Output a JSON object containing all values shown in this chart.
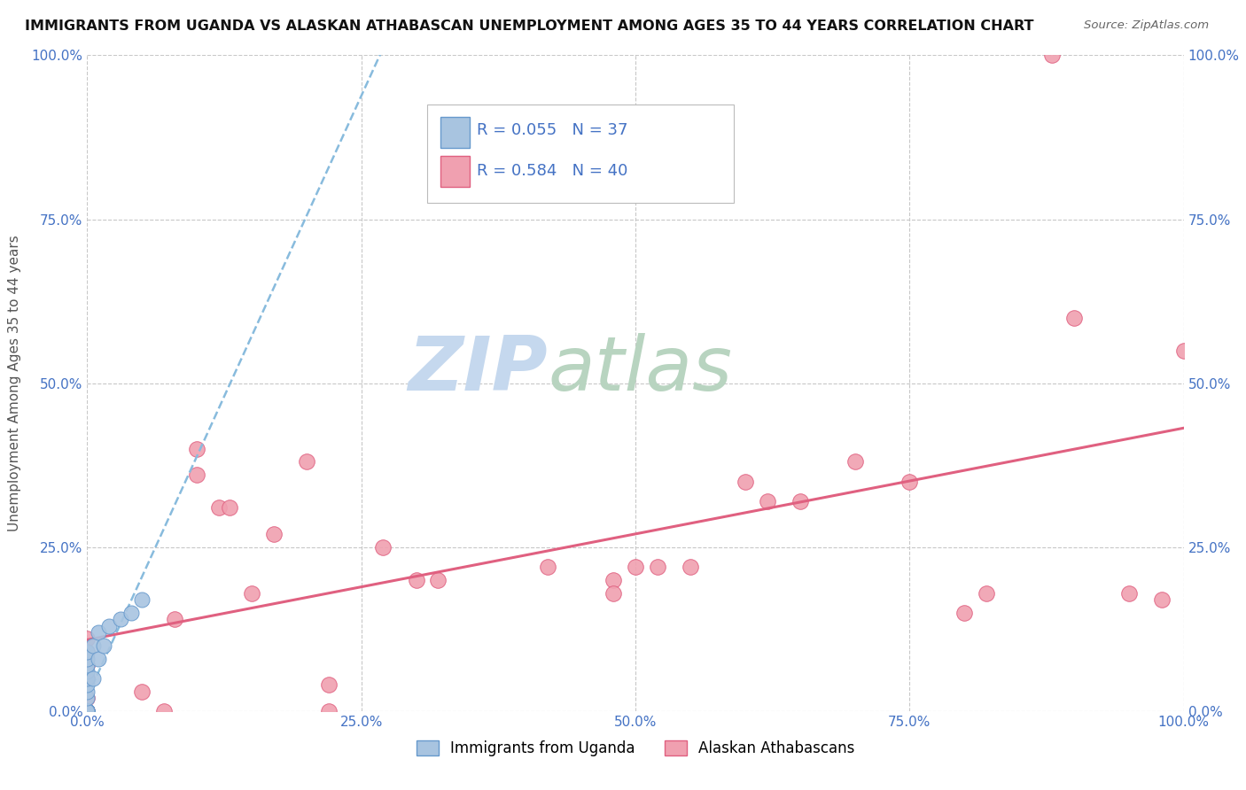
{
  "title": "IMMIGRANTS FROM UGANDA VS ALASKAN ATHABASCAN UNEMPLOYMENT AMONG AGES 35 TO 44 YEARS CORRELATION CHART",
  "source": "Source: ZipAtlas.com",
  "ylabel": "Unemployment Among Ages 35 to 44 years",
  "xlabel": "",
  "xlim": [
    0.0,
    1.0
  ],
  "ylim": [
    0.0,
    1.0
  ],
  "xtick_labels": [
    "0.0%",
    "25.0%",
    "50.0%",
    "75.0%",
    "100.0%"
  ],
  "xtick_vals": [
    0.0,
    0.25,
    0.5,
    0.75,
    1.0
  ],
  "ytick_labels": [
    "0.0%",
    "25.0%",
    "50.0%",
    "75.0%",
    "100.0%"
  ],
  "ytick_vals": [
    0.0,
    0.25,
    0.5,
    0.75,
    1.0
  ],
  "uganda_color": "#a8c4e0",
  "uganda_edge": "#6699cc",
  "athabascan_color": "#f0a0b0",
  "athabascan_edge": "#e06080",
  "uganda_R": 0.055,
  "uganda_N": 37,
  "athabascan_R": 0.584,
  "athabascan_N": 40,
  "background_color": "#ffffff",
  "grid_color": "#c8c8c8",
  "watermark_zip_color": "#c8d8ee",
  "watermark_atlas_color": "#c8d8d0",
  "trendline_uganda_color": "#88bbdd",
  "trendline_athabascan_color": "#e06080",
  "uganda_points": [
    [
      0.0,
      0.0
    ],
    [
      0.0,
      0.0
    ],
    [
      0.0,
      0.0
    ],
    [
      0.0,
      0.0
    ],
    [
      0.0,
      0.0
    ],
    [
      0.0,
      0.0
    ],
    [
      0.0,
      0.0
    ],
    [
      0.0,
      0.0
    ],
    [
      0.0,
      0.0
    ],
    [
      0.0,
      0.0
    ],
    [
      0.0,
      0.0
    ],
    [
      0.0,
      0.0
    ],
    [
      0.0,
      0.0
    ],
    [
      0.0,
      0.0
    ],
    [
      0.0,
      0.0
    ],
    [
      0.0,
      0.0
    ],
    [
      0.0,
      0.0
    ],
    [
      0.0,
      0.0
    ],
    [
      0.0,
      0.0
    ],
    [
      0.0,
      0.0
    ],
    [
      0.0,
      0.02
    ],
    [
      0.0,
      0.03
    ],
    [
      0.0,
      0.04
    ],
    [
      0.0,
      0.05
    ],
    [
      0.0,
      0.06
    ],
    [
      0.0,
      0.07
    ],
    [
      0.0,
      0.08
    ],
    [
      0.0,
      0.09
    ],
    [
      0.005,
      0.05
    ],
    [
      0.005,
      0.1
    ],
    [
      0.01,
      0.08
    ],
    [
      0.01,
      0.12
    ],
    [
      0.015,
      0.1
    ],
    [
      0.02,
      0.13
    ],
    [
      0.03,
      0.14
    ],
    [
      0.04,
      0.15
    ],
    [
      0.05,
      0.17
    ]
  ],
  "athabascan_points": [
    [
      0.0,
      0.0
    ],
    [
      0.0,
      0.02
    ],
    [
      0.0,
      0.05
    ],
    [
      0.0,
      0.07
    ],
    [
      0.0,
      0.09
    ],
    [
      0.0,
      0.11
    ],
    [
      0.0,
      0.0
    ],
    [
      0.05,
      0.03
    ],
    [
      0.07,
      0.0
    ],
    [
      0.08,
      0.14
    ],
    [
      0.1,
      0.4
    ],
    [
      0.1,
      0.36
    ],
    [
      0.12,
      0.31
    ],
    [
      0.13,
      0.31
    ],
    [
      0.15,
      0.18
    ],
    [
      0.17,
      0.27
    ],
    [
      0.2,
      0.38
    ],
    [
      0.22,
      0.0
    ],
    [
      0.22,
      0.04
    ],
    [
      0.27,
      0.25
    ],
    [
      0.3,
      0.2
    ],
    [
      0.32,
      0.2
    ],
    [
      0.42,
      0.22
    ],
    [
      0.48,
      0.2
    ],
    [
      0.48,
      0.18
    ],
    [
      0.5,
      0.22
    ],
    [
      0.52,
      0.22
    ],
    [
      0.55,
      0.22
    ],
    [
      0.6,
      0.35
    ],
    [
      0.62,
      0.32
    ],
    [
      0.65,
      0.32
    ],
    [
      0.7,
      0.38
    ],
    [
      0.75,
      0.35
    ],
    [
      0.8,
      0.15
    ],
    [
      0.82,
      0.18
    ],
    [
      0.88,
      1.0
    ],
    [
      0.9,
      0.6
    ],
    [
      0.95,
      0.18
    ],
    [
      0.98,
      0.17
    ],
    [
      1.0,
      0.55
    ]
  ]
}
